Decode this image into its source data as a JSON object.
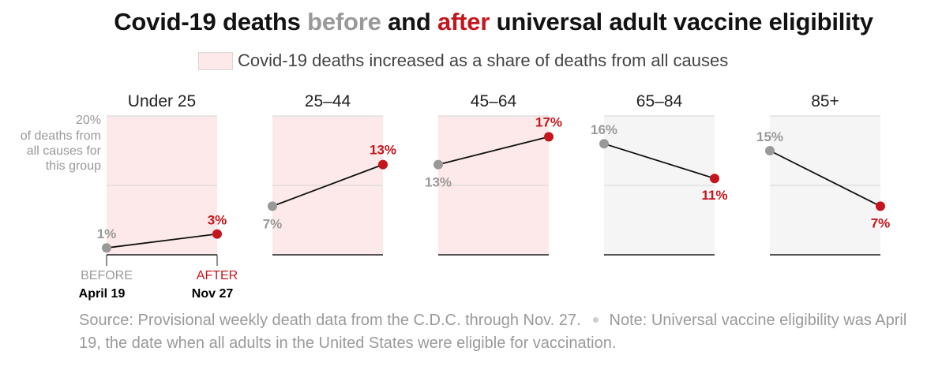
{
  "title": {
    "prefix": "Covid-19 deaths ",
    "before_word": "before",
    "middle": " and ",
    "after_word": "after",
    "suffix": " universal adult vaccine eligibility"
  },
  "legend": {
    "label": "Covid-19 deaths increased as a share of deaths from all causes"
  },
  "colors": {
    "before": "#999999",
    "after": "#c4161c",
    "increase_bg": "#fde9e9",
    "decrease_bg": "#f5f5f5"
  },
  "chart_data": {
    "type": "line",
    "title": "Covid-19 deaths before and after universal adult vaccine eligibility",
    "ylim": [
      0,
      20
    ],
    "y_tick_labels": [
      "20%",
      "of deaths from",
      "all causes for",
      "this group"
    ],
    "x_categories": [
      "BEFORE",
      "AFTER"
    ],
    "x_dates": [
      "April 19",
      "Nov 27"
    ],
    "series": [
      {
        "name": "Under 25",
        "values": [
          1,
          3
        ],
        "labels": [
          "1%",
          "3%"
        ],
        "increased": true
      },
      {
        "name": "25–44",
        "values": [
          7,
          13
        ],
        "labels": [
          "7%",
          "13%"
        ],
        "increased": true
      },
      {
        "name": "45–64",
        "values": [
          13,
          17
        ],
        "labels": [
          "13%",
          "17%"
        ],
        "increased": true
      },
      {
        "name": "65–84",
        "values": [
          16,
          11
        ],
        "labels": [
          "16%",
          "11%"
        ],
        "increased": false
      },
      {
        "name": "85+",
        "values": [
          15,
          7
        ],
        "labels": [
          "15%",
          "7%"
        ],
        "increased": false
      }
    ],
    "unit": "%"
  },
  "source": {
    "part1": "Source: Provisional weekly death data from the C.D.C. through Nov. 27.",
    "part2": "Note: Universal vaccine eligibility was April 19, the date when all adults in the United States were eligible for vaccination."
  }
}
